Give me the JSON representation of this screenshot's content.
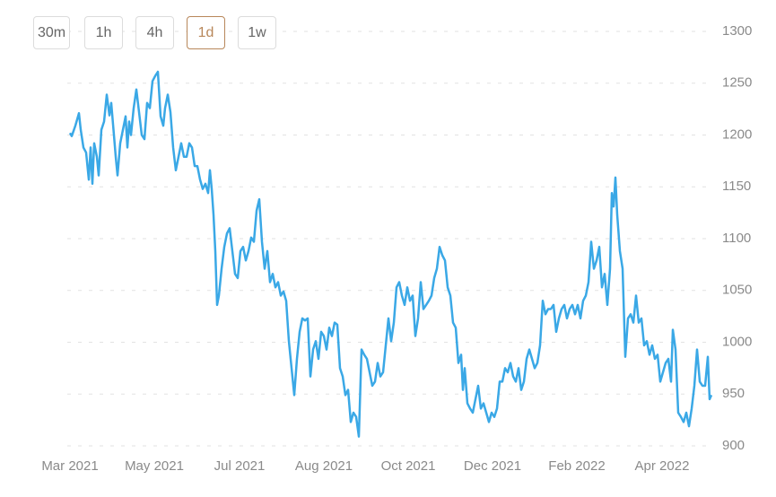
{
  "buttons": [
    "30m",
    "1h",
    "4h",
    "1d",
    "1w"
  ],
  "active_button": "1d",
  "chart_data": {
    "type": "line",
    "x": [
      0,
      2,
      6,
      10,
      12,
      15,
      18,
      21,
      23,
      25,
      27,
      30,
      32,
      35,
      38,
      41,
      44,
      46,
      49,
      51,
      53,
      56,
      59,
      62,
      64,
      66,
      68,
      71,
      74,
      77,
      80,
      83,
      86,
      89,
      92,
      95,
      98,
      101,
      104,
      106,
      109,
      112,
      115,
      118,
      121,
      124,
      127,
      130,
      133,
      136,
      139,
      142,
      145,
      148,
      151,
      154,
      156,
      158,
      160,
      162,
      164,
      166,
      169,
      172,
      175,
      178,
      181,
      184,
      187,
      190,
      193,
      196,
      199,
      202,
      205,
      208,
      211,
      214,
      217,
      220,
      223,
      226,
      229,
      232,
      235,
      238,
      241,
      244,
      247,
      250,
      253,
      256,
      259,
      262,
      265,
      268,
      271,
      274,
      277,
      280,
      283,
      286,
      289,
      292,
      295,
      298,
      301,
      304,
      307,
      310,
      313,
      316,
      319,
      322,
      325,
      328,
      331,
      334,
      337,
      340,
      343,
      346,
      349,
      352,
      355,
      358,
      361,
      364,
      367,
      370,
      373,
      376,
      379,
      382,
      385,
      388,
      391,
      394,
      397,
      400,
      403,
      406,
      409,
      412,
      415,
      418,
      421,
      424,
      427,
      430,
      433,
      436,
      438,
      440,
      443,
      446,
      449,
      452,
      455,
      458,
      461,
      464,
      467,
      470,
      473,
      476,
      479,
      482,
      485,
      488,
      491,
      494,
      497,
      500,
      503,
      506,
      509,
      512,
      515,
      518,
      521,
      524,
      527,
      530,
      533,
      536,
      539,
      542,
      545,
      548,
      551,
      554,
      557,
      560,
      563,
      566,
      569,
      572,
      575,
      578,
      581,
      584,
      587,
      590,
      593,
      596,
      599,
      602,
      604,
      606,
      608,
      610,
      613,
      616,
      619,
      622,
      625,
      628,
      631,
      634,
      637,
      640,
      643,
      646,
      649,
      652,
      655,
      658,
      661,
      664,
      667,
      670,
      672,
      675,
      678,
      681,
      684,
      687,
      690,
      693,
      696,
      699,
      702,
      705,
      708,
      711,
      713,
      715
    ],
    "series": [
      {
        "color": "#3aa8e6",
        "values": [
          1202,
          1199,
          1209,
          1221,
          1205,
          1188,
          1183,
          1157,
          1188,
          1153,
          1192,
          1179,
          1161,
          1205,
          1213,
          1239,
          1219,
          1231,
          1200,
          1179,
          1161,
          1192,
          1205,
          1218,
          1188,
          1213,
          1200,
          1226,
          1244,
          1222,
          1200,
          1196,
          1231,
          1226,
          1252,
          1257,
          1261,
          1218,
          1209,
          1226,
          1239,
          1222,
          1188,
          1166,
          1179,
          1192,
          1179,
          1179,
          1192,
          1188,
          1170,
          1170,
          1157,
          1148,
          1153,
          1144,
          1166,
          1148,
          1123,
          1088,
          1036,
          1045,
          1071,
          1092,
          1105,
          1110,
          1088,
          1066,
          1062,
          1088,
          1092,
          1079,
          1088,
          1101,
          1097,
          1127,
          1138,
          1097,
          1071,
          1088,
          1058,
          1066,
          1053,
          1058,
          1045,
          1049,
          1040,
          1001,
          975,
          949,
          984,
          1010,
          1023,
          1021,
          1023,
          967,
          993,
          1001,
          984,
          1010,
          1006,
          993,
          1014,
          1006,
          1019,
          1017,
          975,
          967,
          949,
          954,
          923,
          932,
          928,
          909,
          993,
          988,
          984,
          971,
          958,
          962,
          980,
          967,
          971,
          997,
          1023,
          1001,
          1019,
          1053,
          1058,
          1045,
          1036,
          1053,
          1040,
          1045,
          1006,
          1023,
          1058,
          1032,
          1036,
          1040,
          1045,
          1062,
          1071,
          1092,
          1084,
          1079,
          1053,
          1045,
          1019,
          1014,
          980,
          988,
          954,
          975,
          941,
          936,
          932,
          945,
          958,
          936,
          941,
          932,
          923,
          932,
          928,
          936,
          962,
          962,
          975,
          971,
          980,
          967,
          962,
          975,
          954,
          962,
          984,
          993,
          984,
          975,
          980,
          997,
          1040,
          1027,
          1032,
          1032,
          1036,
          1010,
          1023,
          1032,
          1036,
          1023,
          1032,
          1036,
          1027,
          1036,
          1023,
          1040,
          1045,
          1058,
          1097,
          1071,
          1079,
          1092,
          1053,
          1066,
          1036,
          1071,
          1144,
          1131,
          1159,
          1123,
          1088,
          1071,
          986,
          1023,
          1027,
          1019,
          1045,
          1019,
          1023,
          997,
          1001,
          988,
          997,
          984,
          988,
          962,
          971,
          980,
          984,
          962,
          1012,
          993,
          932,
          928,
          923,
          932,
          919,
          936,
          958,
          993,
          962,
          958,
          958,
          986,
          945,
          949
        ]
      }
    ],
    "xlim": [
      0,
      715
    ],
    "xticks": [
      {
        "value": 0,
        "label": "Mar 2021"
      },
      {
        "value": 94,
        "label": "May 2021"
      },
      {
        "value": 189,
        "label": "Jul 2021"
      },
      {
        "value": 283,
        "label": "Aug 2021"
      },
      {
        "value": 377,
        "label": "Oct 2021"
      },
      {
        "value": 471,
        "label": "Dec 2021"
      },
      {
        "value": 565,
        "label": "Feb 2022"
      },
      {
        "value": 660,
        "label": "Apr 2022"
      }
    ],
    "ylim": [
      900,
      1300
    ],
    "yticks": [
      900,
      950,
      1000,
      1050,
      1100,
      1150,
      1200,
      1250,
      1300
    ],
    "grid": true
  }
}
